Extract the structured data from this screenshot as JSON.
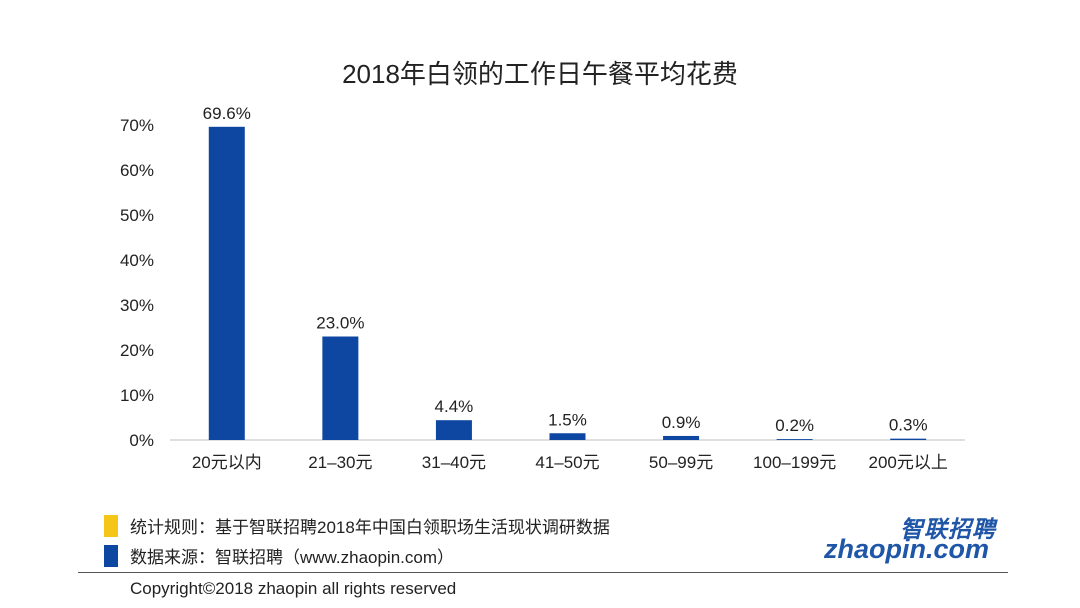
{
  "chart_data": {
    "type": "bar",
    "title": "2018年白领的工作日午餐平均花费",
    "categories": [
      "20元以内",
      "21–30元",
      "31–40元",
      "41–50元",
      "50–99元",
      "100–199元",
      "200元以上"
    ],
    "values": [
      69.6,
      23.0,
      4.4,
      1.5,
      0.9,
      0.2,
      0.3
    ],
    "value_labels": [
      "69.6%",
      "23.0%",
      "4.4%",
      "1.5%",
      "0.9%",
      "0.2%",
      "0.3%"
    ],
    "yticks": [
      "0%",
      "10%",
      "20%",
      "30%",
      "40%",
      "50%",
      "60%",
      "70%"
    ],
    "ylim": [
      0,
      70
    ],
    "xlabel": "",
    "ylabel": "",
    "grid": false,
    "bar_color": "#0d47a1"
  },
  "footer": {
    "legend_yellow": "统计规则：基于智联招聘2018年中国白领职场生活现状调研数据",
    "legend_blue": "数据来源：智联招聘（www.zhaopin.com）",
    "yellow_color": "#f5c518",
    "blue_color": "#0d47a1",
    "copyright": "Copyright©2018 zhaopin all rights reserved"
  },
  "logo": {
    "cn_text": "智联招聘",
    "en_text": "zhaopin.com"
  }
}
